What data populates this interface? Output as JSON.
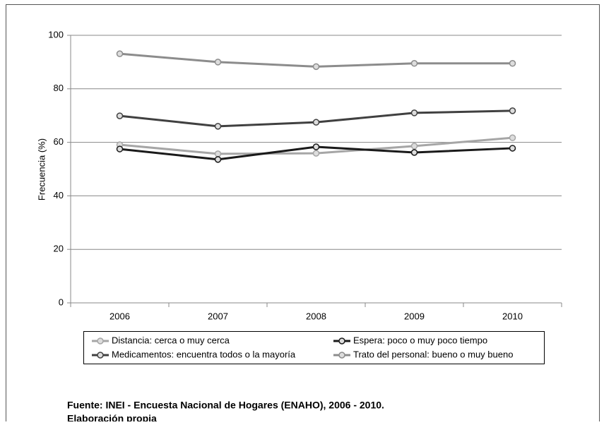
{
  "chart_data": {
    "type": "line",
    "y_label": "Frecuencia (%)",
    "categories": [
      "2006",
      "2007",
      "2008",
      "2009",
      "2010"
    ],
    "series": [
      {
        "name": "Distancia: cerca o muy cerca",
        "color": "#a6a6a6",
        "values": [
          59.1,
          55.7,
          55.9,
          58.6,
          61.7
        ]
      },
      {
        "name": "Espera: poco o muy poco tiempo",
        "color": "#1a1a1a",
        "values": [
          57.5,
          53.6,
          58.3,
          56.2,
          57.8
        ]
      },
      {
        "name": "Medicamentos: encuentra todos o la mayoría",
        "color": "#404040",
        "values": [
          69.9,
          66.0,
          67.5,
          71.0,
          71.8
        ]
      },
      {
        "name": "Trato del personal: bueno o muy bueno",
        "color": "#8c8c8c",
        "values": [
          93.1,
          90.0,
          88.3,
          89.5,
          89.5
        ]
      }
    ],
    "ylim": [
      0,
      100
    ],
    "yticks": [
      0,
      20,
      40,
      60,
      80,
      100
    ],
    "grid": true,
    "notes": [
      "Fuente: INEI - Encuesta Nacional de Hogares (ENAHO), 2006 - 2010.",
      "Elaboración propia"
    ]
  }
}
